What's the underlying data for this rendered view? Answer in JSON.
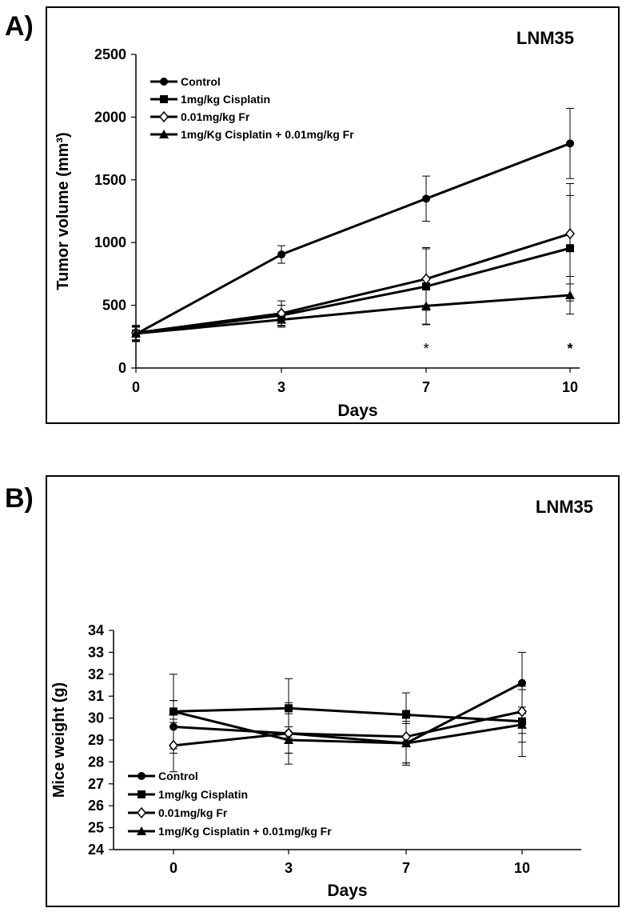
{
  "panels": [
    {
      "label": "A)"
    },
    {
      "label": "B)"
    }
  ],
  "chart_data": [
    {
      "type": "line",
      "panel": "A)",
      "title": "LNM35",
      "xlabel": "Days",
      "ylabel": "Tumor volume (mm³)",
      "categories": [
        "0",
        "3",
        "7",
        "10"
      ],
      "x": [
        0,
        3,
        7,
        10
      ],
      "ylim": [
        0,
        2500
      ],
      "yticks": [
        "0",
        "500",
        "1000",
        "1500",
        "2000",
        "2500"
      ],
      "grid": false,
      "legend_position": "top-left",
      "annotations": [
        {
          "text": "*",
          "x": 7
        },
        {
          "text": "*",
          "x": 10
        }
      ],
      "series": [
        {
          "name": "Control",
          "marker": "circle",
          "values": [
            270,
            905,
            1350,
            1790
          ],
          "errors": [
            60,
            70,
            180,
            280
          ]
        },
        {
          "name": "1mg/kg Cisplatin",
          "marker": "square",
          "values": [
            275,
            420,
            650,
            955
          ],
          "errors": [
            60,
            80,
            300,
            420
          ]
        },
        {
          "name": "0.01mg/kg Fr",
          "marker": "diamond",
          "values": [
            280,
            435,
            710,
            1070
          ],
          "errors": [
            60,
            100,
            250,
            400
          ]
        },
        {
          "name": "1mg/Kg Cisplatin + 0.01mg/kg Fr",
          "marker": "triangle",
          "values": [
            275,
            385,
            495,
            580
          ],
          "errors": [
            50,
            60,
            150,
            150
          ]
        }
      ]
    },
    {
      "type": "line",
      "panel": "B)",
      "title": "LNM35",
      "xlabel": "Days",
      "ylabel": "Mice weight (g)",
      "categories": [
        "0",
        "3",
        "7",
        "10"
      ],
      "x": [
        0,
        3,
        7,
        10
      ],
      "ylim": [
        24,
        34
      ],
      "yticks": [
        "24",
        "25",
        "26",
        "27",
        "28",
        "29",
        "30",
        "31",
        "32",
        "33",
        "34"
      ],
      "grid": false,
      "legend_position": "bottom-left",
      "series": [
        {
          "name": "Control",
          "marker": "circle",
          "values": [
            29.6,
            29.3,
            28.85,
            31.6
          ],
          "errors": [
            1.2,
            1.4,
            1.0,
            1.4
          ]
        },
        {
          "name": "1mg/kg Cisplatin",
          "marker": "square",
          "values": [
            30.3,
            30.45,
            30.15,
            29.85
          ],
          "errors": [
            1.7,
            1.35,
            1.0,
            1.6
          ]
        },
        {
          "name": "0.01mg/kg Fr",
          "marker": "diamond",
          "values": [
            28.75,
            29.3,
            29.15,
            30.3
          ],
          "errors": [
            1.2,
            0.9,
            1.2,
            1.0
          ]
        },
        {
          "name": "1mg/Kg Cisplatin + 0.01mg/kg Fr",
          "marker": "triangle",
          "values": [
            30.3,
            29.0,
            28.85,
            29.7
          ],
          "errors": [
            0.5,
            0.6,
            0.9,
            0.8
          ]
        }
      ]
    }
  ]
}
